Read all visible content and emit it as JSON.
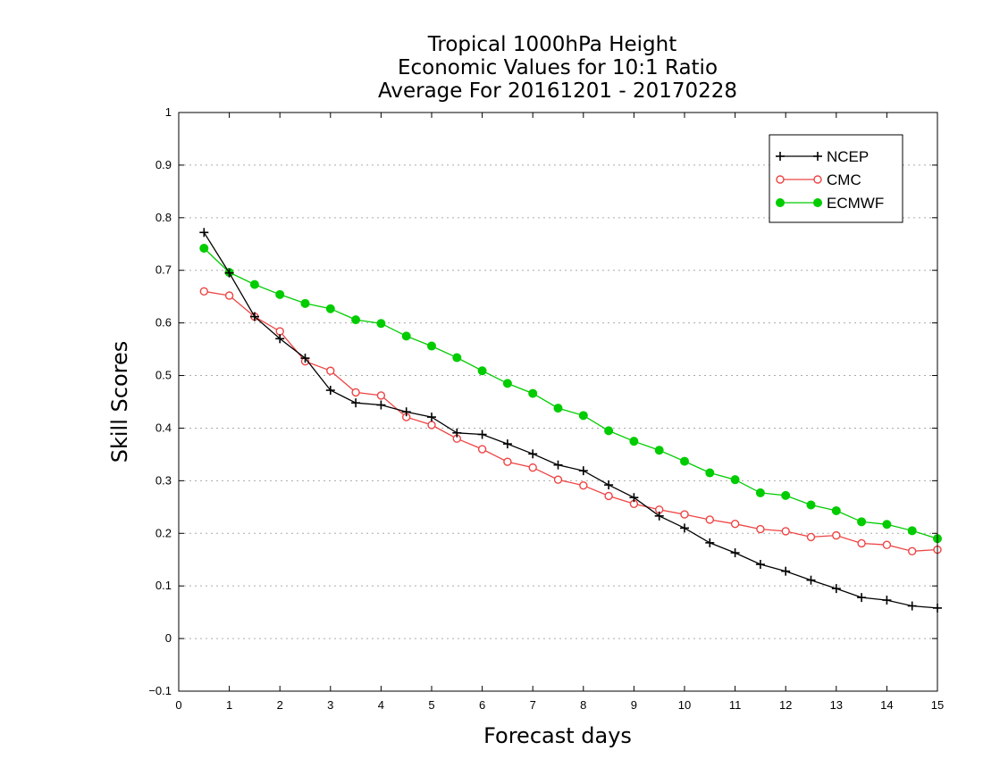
{
  "chart_data": {
    "type": "line",
    "title": [
      "Tropical 1000hPa Height",
      "Economic Values for 10:1 Ratio",
      "Average For 20161201 - 20170228"
    ],
    "xlabel": "Forecast days",
    "ylabel": "Skill Scores",
    "xlim": [
      0,
      15
    ],
    "ylim": [
      -0.1,
      1
    ],
    "xticks": [
      "0",
      "1",
      "2",
      "3",
      "4",
      "5",
      "6",
      "7",
      "8",
      "9",
      "10",
      "11",
      "12",
      "13",
      "14",
      "15"
    ],
    "yticks": [
      "−0.1",
      "0",
      "0.1",
      "0.2",
      "0.3",
      "0.4",
      "0.5",
      "0.6",
      "0.7",
      "0.8",
      "0.9",
      "1"
    ],
    "grid": "horizontal dotted",
    "legend_position": "top-right",
    "x": [
      0.5,
      1,
      1.5,
      2,
      2.5,
      3,
      3.5,
      4,
      4.5,
      5,
      5.5,
      6,
      6.5,
      7,
      7.5,
      8,
      8.5,
      9,
      9.5,
      10,
      10.5,
      11,
      11.5,
      12,
      12.5,
      13,
      13.5,
      14,
      14.5,
      15
    ],
    "series": [
      {
        "name": "NCEP",
        "color": "#000000",
        "marker": "plus",
        "values": [
          0.772,
          0.695,
          0.612,
          0.57,
          0.533,
          0.472,
          0.448,
          0.444,
          0.431,
          0.421,
          0.391,
          0.388,
          0.37,
          0.351,
          0.33,
          0.319,
          0.292,
          0.268,
          0.233,
          0.21,
          0.182,
          0.163,
          0.141,
          0.128,
          0.111,
          0.095,
          0.078,
          0.073,
          0.062,
          0.058
        ]
      },
      {
        "name": "CMC",
        "color": "#ee4444",
        "marker": "open-circle",
        "values": [
          0.66,
          0.652,
          0.612,
          0.584,
          0.527,
          0.509,
          0.468,
          0.462,
          0.421,
          0.406,
          0.38,
          0.36,
          0.336,
          0.325,
          0.302,
          0.291,
          0.271,
          0.256,
          0.245,
          0.236,
          0.226,
          0.218,
          0.208,
          0.204,
          0.193,
          0.196,
          0.181,
          0.178,
          0.166,
          0.169
        ]
      },
      {
        "name": "ECMWF",
        "color": "#00cc00",
        "marker": "filled-circle",
        "values": [
          0.742,
          0.696,
          0.673,
          0.654,
          0.637,
          0.627,
          0.606,
          0.599,
          0.575,
          0.556,
          0.534,
          0.509,
          0.485,
          0.466,
          0.438,
          0.424,
          0.395,
          0.375,
          0.358,
          0.337,
          0.315,
          0.302,
          0.277,
          0.272,
          0.254,
          0.243,
          0.222,
          0.217,
          0.205,
          0.19
        ]
      }
    ]
  }
}
